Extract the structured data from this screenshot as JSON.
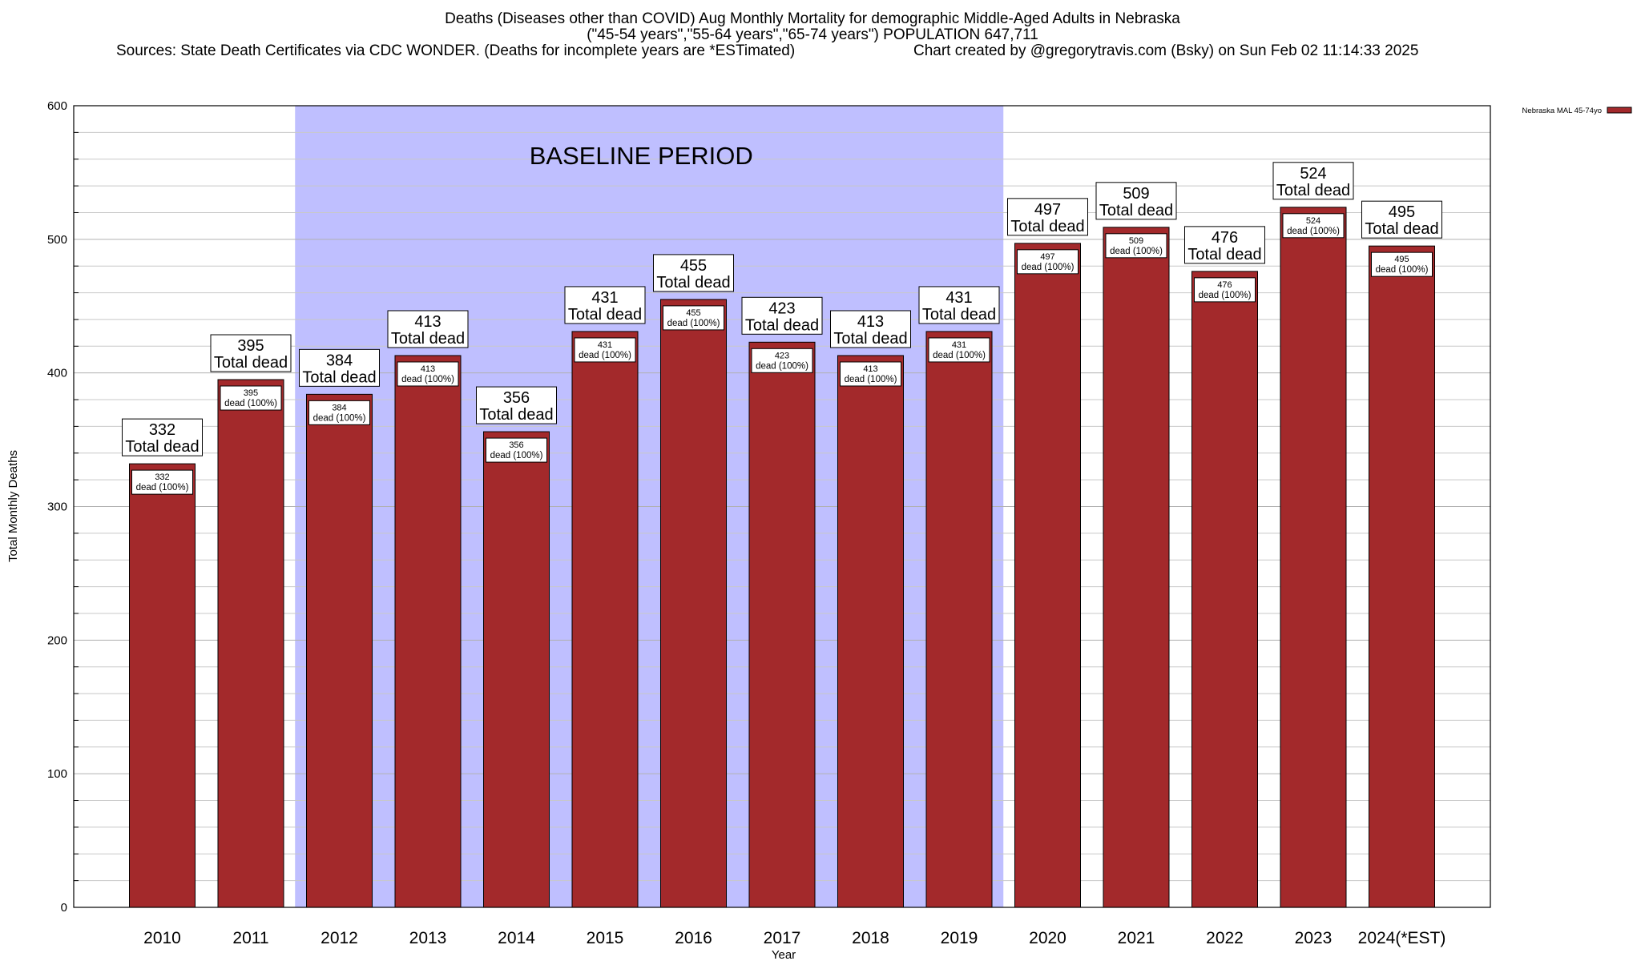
{
  "title_line1": "Deaths (Diseases other than COVID) Aug Monthly Mortality for demographic Middle-Aged Adults in Nebraska",
  "title_line2": "(\"45-54 years\",\"55-64 years\",\"65-74 years\") POPULATION 647,711",
  "sources": "Sources: State Death Certificates via CDC WONDER. (Deaths for incomplete years are *ESTimated)",
  "credit": "Chart created by @gregorytravis.com (Bsky) on Sun Feb 02 11:14:33 2025",
  "colors": {
    "bar": "#a3292b",
    "baseline_band": "#bfbfff",
    "grid": "#c8c8c8"
  },
  "chart_data": {
    "type": "bar",
    "xlabel": "Year",
    "ylabel": "Total Monthly Deaths",
    "ylim": [
      0,
      600
    ],
    "yticks": [
      0,
      100,
      200,
      300,
      400,
      500,
      600
    ],
    "grid": true,
    "legend_position": "top-right",
    "categories": [
      "2010",
      "2011",
      "2012",
      "2013",
      "2014",
      "2015",
      "2016",
      "2017",
      "2018",
      "2019",
      "2020",
      "2021",
      "2022",
      "2023",
      "2024(*EST)"
    ],
    "series": [
      {
        "name": "Nebraska MAL 45-74yo",
        "values": [
          332,
          395,
          384,
          413,
          356,
          431,
          455,
          423,
          413,
          431,
          497,
          509,
          476,
          524,
          495
        ]
      }
    ],
    "total_label": "Total dead",
    "inner_label": "dead (100%)",
    "annotation": {
      "text": "BASELINE PERIOD",
      "from": "2012",
      "to": "2019"
    }
  }
}
